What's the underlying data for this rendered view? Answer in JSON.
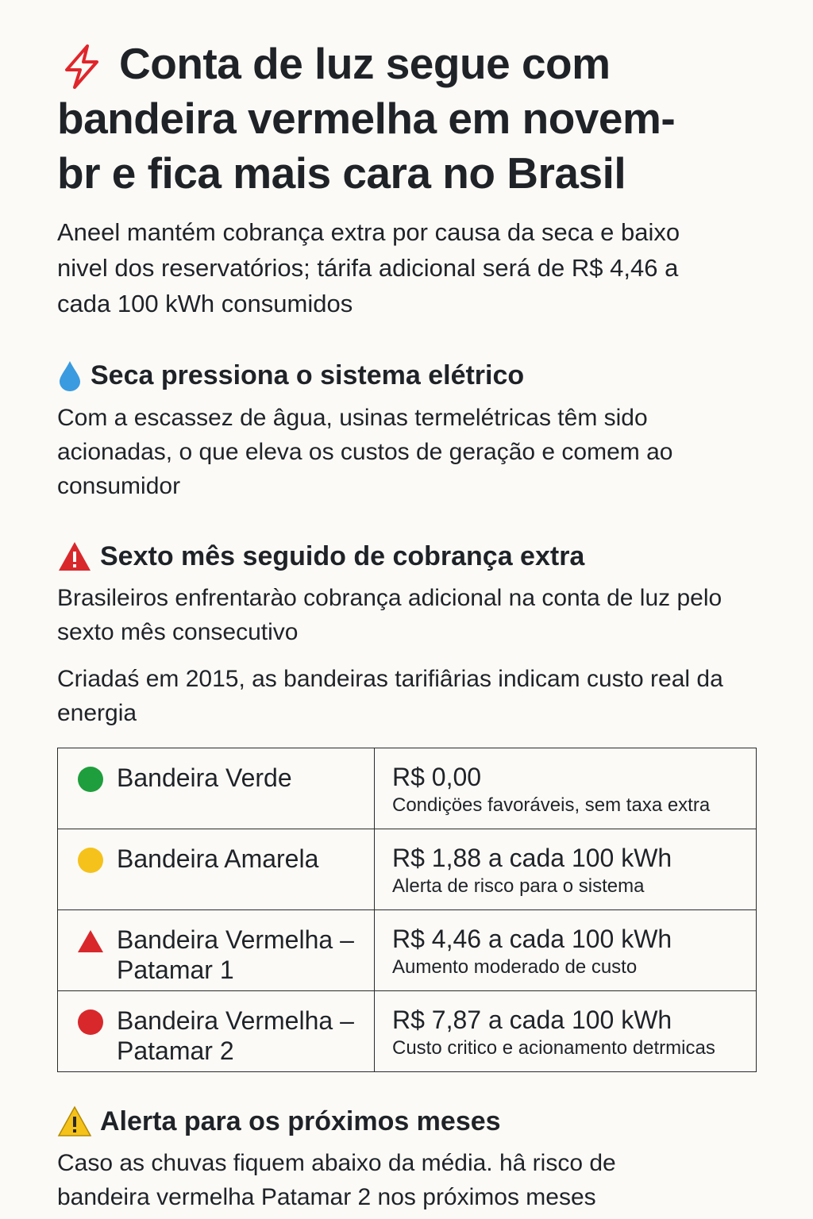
{
  "header": {
    "title_lines": [
      "Conta de luz segue com",
      "bandeira vermelha em novem-",
      "br e fica mais cara no Brasil"
    ],
    "subtitle": "Aneel mantém cobrança extra por causa da seca e baixo nivel dos reservatórios; tárifa adicional será de R$ 4,46 a cada 100 kWh consumidos"
  },
  "sections": [
    {
      "heading": "Seca pressiona o sistema elétrico",
      "paragraphs": [
        "Com a escassez de âgua, usinas termelétricas têm sido acionadas, o que eleva os custos de geração e comem ao consumidor"
      ]
    },
    {
      "heading": "Sexto mês seguido de cobrança extra",
      "paragraphs": [
        "Brasileiros enfrentarào cobrança adicional na conta de luz pelo sexto mês consecutivo",
        "Criadaś em 2015, as bandeiras tarifiârias indicam custo real da energia"
      ]
    },
    {
      "heading": "Alerta para os próximos meses",
      "paragraphs": [
        "Caso as chuvas fiquem abaixo da média.  hâ risco de bandeira vermelha Patamar 2 nos próximos meses"
      ]
    }
  ],
  "table": {
    "rows": [
      [
        "Bandeira Verde",
        "R$ 0,00",
        "Condiçöes favoráveis, sem taxa extra"
      ],
      [
        "Bandeira Amarela",
        "R$ 1,88 a cada 100 kWh",
        "Alerta de risco para o sistema"
      ],
      [
        "Bandeira Vermelha – Patamar 1",
        "R$ 4,46 a cada 100 kWh",
        "Aumento moderado de custo"
      ],
      [
        "Bandeira Vermelha – Patamar 2",
        "R$ 7,87 a cada 100 kWh",
        "Custo critico e acionamento detrmicas"
      ]
    ]
  }
}
